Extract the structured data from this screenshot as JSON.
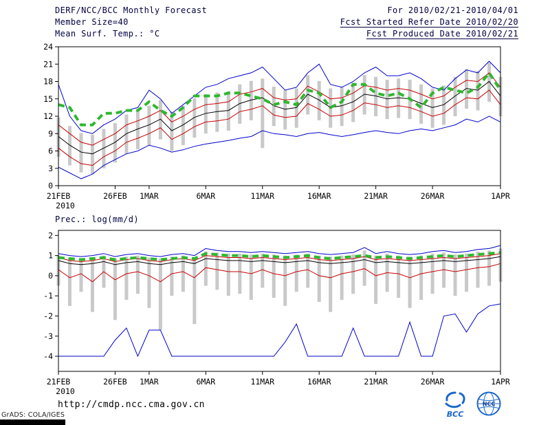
{
  "header": {
    "title": "DERF/NCC/BCC Monthly Forecast",
    "member_size": "Member Size=40",
    "for_range": "For 2010/02/21-2010/04/01",
    "fcst_started": "Fcst Started Refer Date 2010/02/20",
    "fcst_produced": "Fcst Produced Date 2010/02/21"
  },
  "footer": {
    "url": "http://cmdp.ncc.cma.gov.cn",
    "grads_credit": "GrADS: COLA/IGES",
    "bcc_logo_label": "BCC",
    "ncc_logo_label": "NCC"
  },
  "colors": {
    "line_blue": "#0000cd",
    "line_red": "#c80000",
    "line_black": "#000000",
    "line_green": "#2eb82e",
    "bar_gray": "#c9c9c9",
    "header_text": "#000040",
    "url_blue": "#0000dc",
    "logo_blue": "#1b66c9"
  },
  "chart_data": [
    {
      "type": "line",
      "title": "Mean Surf. Temp.: °C",
      "x_sub_label": "2010",
      "n_days": 40,
      "x_tick_labels": [
        "21FEB",
        "26FEB",
        "1MAR",
        "6MAR",
        "11MAR",
        "16MAR",
        "21MAR",
        "26MAR",
        "1APR"
      ],
      "x_tick_days": [
        0,
        5,
        8,
        13,
        18,
        23,
        28,
        33,
        39
      ],
      "ylim": [
        0,
        24
      ],
      "yticks": [
        0,
        3,
        6,
        9,
        12,
        15,
        18,
        21,
        24
      ],
      "grid": "off",
      "legend": "none",
      "series": [
        {
          "name": "ensemble-max",
          "color": "line_blue",
          "style": "solid",
          "width": 1,
          "values": [
            17.5,
            12.0,
            9.5,
            9.0,
            10.5,
            11.5,
            13.0,
            13.5,
            16.5,
            15.0,
            12.5,
            14.0,
            15.5,
            17.0,
            17.5,
            18.5,
            19.0,
            19.5,
            20.5,
            18.5,
            16.5,
            17.0,
            19.5,
            21.0,
            17.5,
            17.0,
            18.0,
            19.5,
            20.5,
            19.0,
            19.0,
            19.5,
            18.5,
            17.0,
            16.5,
            18.5,
            20.0,
            19.5,
            21.5,
            19.5
          ]
        },
        {
          "name": "upper-spread",
          "color": "line_red",
          "style": "solid",
          "width": 1,
          "values": [
            10.5,
            9.0,
            7.5,
            7.0,
            8.0,
            9.0,
            10.5,
            11.2,
            12.0,
            13.0,
            11.0,
            12.0,
            13.2,
            14.0,
            14.2,
            14.5,
            15.8,
            16.2,
            16.8,
            15.2,
            14.8,
            15.0,
            17.2,
            16.2,
            15.0,
            15.2,
            16.0,
            17.3,
            17.0,
            16.5,
            16.8,
            16.5,
            15.8,
            15.0,
            15.5,
            17.0,
            18.2,
            18.0,
            19.5,
            17.0
          ]
        },
        {
          "name": "ensemble-mean",
          "color": "line_black",
          "style": "solid",
          "width": 1,
          "values": [
            8.5,
            7.0,
            5.8,
            5.5,
            6.5,
            7.5,
            9.0,
            9.8,
            10.5,
            11.5,
            9.5,
            10.5,
            11.8,
            12.5,
            12.8,
            13.0,
            14.2,
            14.8,
            15.2,
            13.8,
            13.2,
            13.5,
            15.8,
            14.8,
            13.5,
            13.8,
            14.5,
            15.8,
            15.5,
            15.0,
            15.2,
            15.0,
            14.2,
            13.5,
            14.0,
            15.5,
            16.8,
            16.5,
            18.0,
            15.5
          ]
        },
        {
          "name": "lower-spread",
          "color": "line_red",
          "style": "solid",
          "width": 1,
          "values": [
            6.5,
            5.0,
            3.8,
            3.5,
            5.0,
            6.0,
            7.5,
            8.2,
            9.0,
            10.0,
            8.0,
            9.0,
            10.2,
            11.0,
            11.2,
            11.5,
            12.8,
            13.2,
            13.8,
            12.2,
            11.8,
            12.0,
            14.2,
            13.2,
            12.0,
            12.2,
            13.0,
            14.3,
            14.0,
            13.5,
            13.8,
            13.5,
            12.8,
            12.0,
            12.5,
            14.0,
            15.2,
            15.0,
            16.5,
            14.0
          ]
        },
        {
          "name": "ensemble-min",
          "color": "line_blue",
          "style": "solid",
          "width": 1,
          "values": [
            3.2,
            2.2,
            1.2,
            2.0,
            3.5,
            4.5,
            5.5,
            6.0,
            7.0,
            6.5,
            5.8,
            6.2,
            6.8,
            7.2,
            7.5,
            7.8,
            8.2,
            8.5,
            9.5,
            9.0,
            8.8,
            8.5,
            9.0,
            9.2,
            8.8,
            8.5,
            8.8,
            9.2,
            9.5,
            9.2,
            9.0,
            9.5,
            9.8,
            9.5,
            10.0,
            10.5,
            11.5,
            11.0,
            12.0,
            11.0
          ]
        },
        {
          "name": "observation",
          "color": "line_green",
          "style": "dashed",
          "width": 4,
          "values": [
            14.0,
            13.5,
            10.5,
            10.5,
            12.5,
            12.5,
            13.0,
            13.0,
            14.5,
            13.0,
            12.0,
            13.5,
            15.5,
            15.5,
            15.5,
            16.0,
            16.0,
            15.5,
            15.0,
            14.0,
            14.5,
            14.0,
            16.5,
            16.0,
            13.5,
            14.5,
            17.5,
            17.5,
            16.0,
            15.5,
            16.0,
            15.0,
            13.5,
            16.0,
            17.0,
            16.5,
            16.0,
            17.0,
            19.5,
            16.5
          ]
        }
      ],
      "bars": {
        "name": "ensemble-range",
        "color": "bar_gray",
        "lo": [
          5.0,
          3.5,
          2.3,
          2.0,
          3.0,
          4.0,
          5.5,
          6.3,
          7.0,
          8.0,
          6.0,
          7.0,
          8.3,
          9.0,
          9.3,
          9.5,
          10.7,
          11.3,
          6.5,
          10.3,
          9.7,
          10.0,
          12.3,
          11.3,
          10.0,
          10.3,
          11.0,
          12.3,
          12.0,
          11.5,
          11.7,
          11.5,
          10.7,
          10.0,
          10.5,
          12.0,
          13.3,
          13.0,
          14.5,
          12.0
        ],
        "hi": [
          11.8,
          10.3,
          9.1,
          8.8,
          9.8,
          10.8,
          12.3,
          13.1,
          13.8,
          14.8,
          12.8,
          13.8,
          15.1,
          15.8,
          16.1,
          16.3,
          17.5,
          18.1,
          18.5,
          17.1,
          16.5,
          16.8,
          19.1,
          18.1,
          16.8,
          17.1,
          17.8,
          19.1,
          18.8,
          18.3,
          18.5,
          18.3,
          17.5,
          16.8,
          17.3,
          18.8,
          20.1,
          19.8,
          21.3,
          18.8
        ]
      }
    },
    {
      "type": "line",
      "title": "Prec.: log(mm/d)",
      "x_sub_label": "2010",
      "n_days": 40,
      "x_tick_labels": [
        "21FEB",
        "26FEB",
        "1MAR",
        "6MAR",
        "11MAR",
        "16MAR",
        "21MAR",
        "26MAR",
        "1APR"
      ],
      "x_tick_days": [
        0,
        5,
        8,
        13,
        18,
        23,
        28,
        33,
        39
      ],
      "ylim": [
        -4.75,
        2.25
      ],
      "yticks": [
        -4,
        -3,
        -2,
        -1,
        0,
        1,
        2
      ],
      "grid": "off",
      "legend": "none",
      "series": [
        {
          "name": "ensemble-max",
          "color": "line_blue",
          "style": "solid",
          "width": 1,
          "values": [
            1.1,
            1.0,
            0.95,
            1.0,
            1.1,
            0.95,
            1.05,
            1.1,
            1.0,
            0.95,
            1.05,
            1.1,
            1.0,
            1.35,
            1.25,
            1.2,
            1.2,
            1.15,
            1.2,
            1.15,
            1.1,
            1.15,
            1.2,
            1.1,
            1.05,
            1.1,
            1.15,
            1.4,
            1.1,
            1.2,
            1.1,
            1.05,
            1.1,
            1.2,
            1.25,
            1.15,
            1.2,
            1.3,
            1.35,
            1.5
          ]
        },
        {
          "name": "upper-spread",
          "color": "line_red",
          "style": "solid",
          "width": 1,
          "values": [
            0.9,
            0.75,
            0.7,
            0.75,
            0.85,
            0.7,
            0.8,
            0.85,
            0.75,
            0.7,
            0.8,
            0.85,
            0.75,
            1.0,
            0.95,
            0.9,
            0.9,
            0.85,
            0.9,
            0.85,
            0.8,
            0.85,
            0.9,
            0.8,
            0.75,
            0.8,
            0.85,
            0.95,
            0.8,
            0.85,
            0.8,
            0.75,
            0.8,
            0.85,
            0.9,
            0.85,
            0.9,
            0.95,
            1.0,
            1.1
          ]
        },
        {
          "name": "ensemble-mean",
          "color": "line_black",
          "style": "solid",
          "width": 1,
          "values": [
            0.75,
            0.6,
            0.55,
            0.6,
            0.7,
            0.55,
            0.65,
            0.7,
            0.6,
            0.55,
            0.65,
            0.7,
            0.6,
            0.85,
            0.8,
            0.75,
            0.75,
            0.7,
            0.75,
            0.7,
            0.65,
            0.7,
            0.75,
            0.65,
            0.6,
            0.65,
            0.7,
            0.8,
            0.65,
            0.7,
            0.65,
            0.6,
            0.65,
            0.7,
            0.75,
            0.7,
            0.75,
            0.8,
            0.85,
            0.95
          ]
        },
        {
          "name": "lower-spread",
          "color": "line_red",
          "style": "solid",
          "width": 1,
          "values": [
            0.3,
            -0.1,
            0.1,
            -0.3,
            0.2,
            -0.2,
            0.1,
            0.2,
            0.0,
            -0.3,
            0.1,
            0.2,
            -0.1,
            0.4,
            0.3,
            0.2,
            0.2,
            0.1,
            0.3,
            0.1,
            0.0,
            0.2,
            0.3,
            0.0,
            -0.1,
            0.1,
            0.2,
            0.35,
            0.0,
            0.15,
            0.1,
            -0.1,
            0.1,
            0.2,
            0.3,
            0.2,
            0.3,
            0.4,
            0.45,
            0.6
          ]
        },
        {
          "name": "ensemble-min",
          "color": "line_blue",
          "style": "solid",
          "width": 1,
          "values": [
            -4,
            -4,
            -4,
            -4,
            -4,
            -3.2,
            -2.6,
            -4,
            -2.7,
            -2.7,
            -4,
            -4,
            -4,
            -4,
            -4,
            -4,
            -4,
            -4,
            -4,
            -4,
            -3.3,
            -2.4,
            -4,
            -4,
            -4,
            -4,
            -2.6,
            -4,
            -4,
            -4,
            -4,
            -2.3,
            -4,
            -4,
            -2.0,
            -1.9,
            -2.8,
            -1.9,
            -1.5,
            -1.4
          ]
        },
        {
          "name": "observation",
          "color": "line_green",
          "style": "dashed",
          "width": 4,
          "values": [
            0.9,
            0.85,
            0.8,
            0.85,
            0.9,
            0.8,
            0.85,
            0.9,
            0.85,
            0.8,
            0.85,
            0.9,
            0.85,
            1.1,
            1.05,
            1.0,
            1.0,
            0.95,
            1.0,
            0.95,
            0.9,
            0.95,
            1.0,
            0.9,
            0.85,
            0.9,
            0.95,
            1.0,
            0.9,
            0.95,
            0.9,
            0.85,
            0.9,
            0.95,
            1.0,
            0.95,
            1.0,
            1.05,
            1.1,
            1.15
          ]
        }
      ],
      "bars": {
        "name": "ensemble-range",
        "color": "bar_gray",
        "lo": [
          -0.5,
          -1.5,
          -0.8,
          -1.8,
          -0.6,
          -2.2,
          -1.2,
          -0.9,
          -1.6,
          -2.7,
          -1.0,
          -0.8,
          -2.4,
          -0.5,
          -0.7,
          -1.0,
          -0.9,
          -1.2,
          -0.6,
          -1.1,
          -1.5,
          -0.8,
          -0.6,
          -1.3,
          -1.8,
          -1.2,
          -0.9,
          -0.5,
          -1.4,
          -0.8,
          -1.1,
          -1.6,
          -1.2,
          -0.9,
          -0.6,
          -1.0,
          -0.8,
          -0.6,
          -0.5,
          -0.3
        ],
        "hi": [
          1.0,
          0.9,
          0.85,
          0.9,
          1.0,
          0.85,
          0.95,
          1.0,
          0.9,
          0.85,
          0.95,
          1.0,
          0.9,
          1.2,
          1.15,
          1.1,
          1.1,
          1.05,
          1.1,
          1.05,
          1.0,
          1.05,
          1.1,
          1.0,
          0.95,
          1.0,
          1.05,
          1.25,
          1.0,
          1.1,
          1.0,
          0.95,
          1.0,
          1.1,
          1.15,
          1.05,
          1.1,
          1.2,
          1.25,
          1.35
        ]
      }
    }
  ]
}
